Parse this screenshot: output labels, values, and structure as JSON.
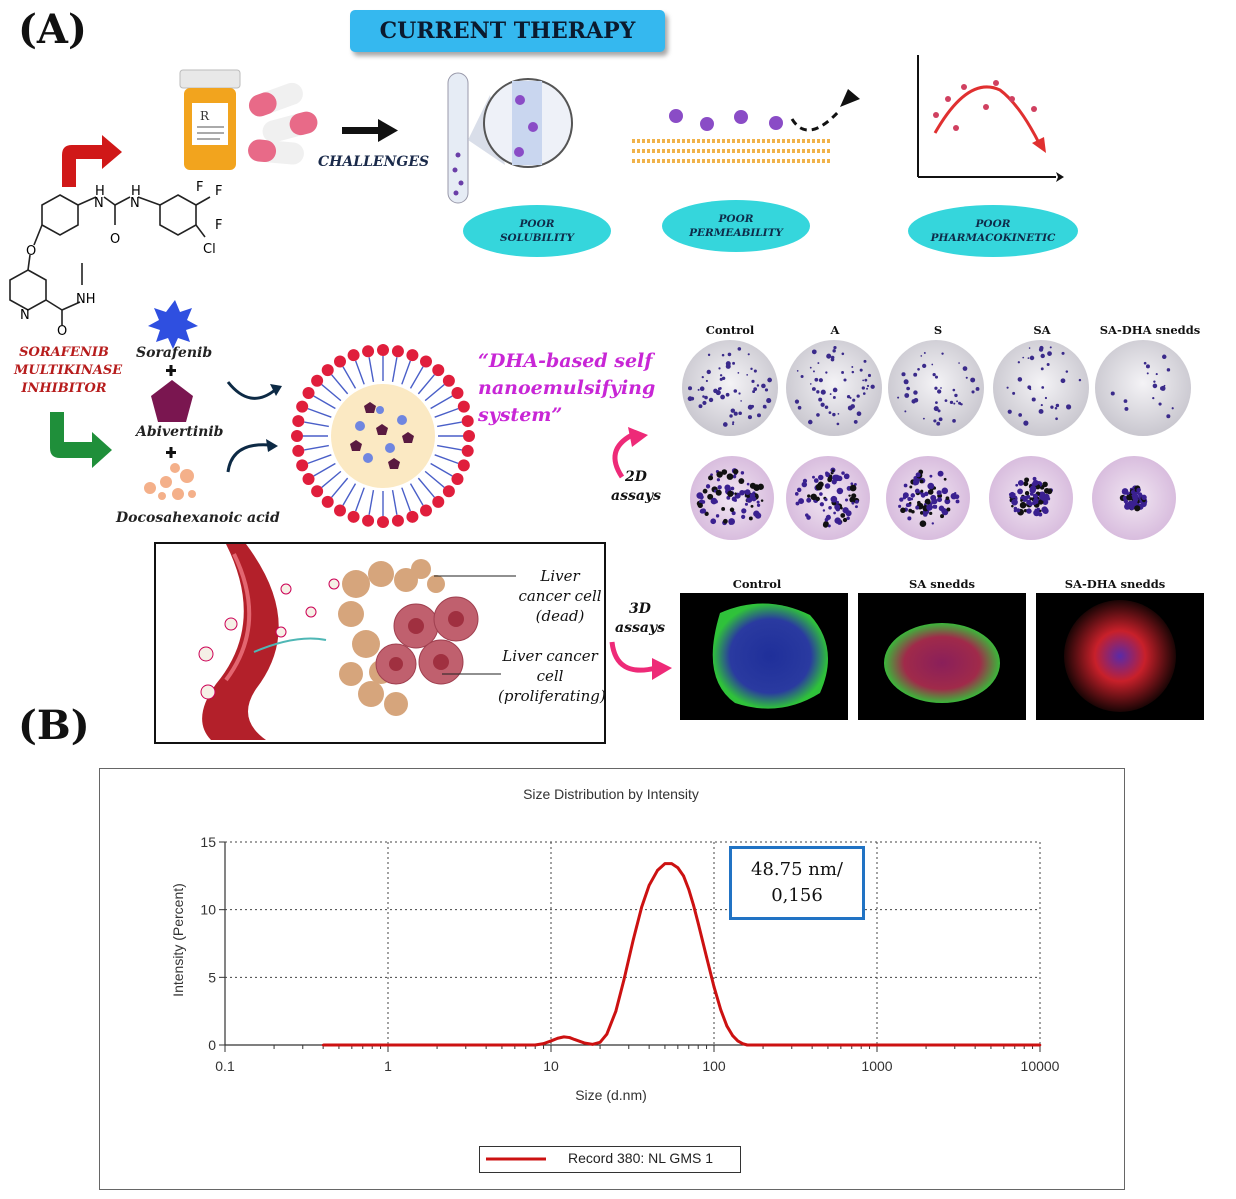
{
  "panel_a_label": "(A)",
  "panel_b_label": "(B)",
  "banner": "CURRENT THERAPY",
  "challenges_label": "CHALLENGES",
  "challenge_pills": [
    {
      "line1": "POOR",
      "line2": "SOLUBILITY"
    },
    {
      "line1": "POOR",
      "line2": "PERMEABILITY"
    },
    {
      "line1": "POOR",
      "line2": "PHARMACOKINETIC"
    }
  ],
  "molecule_atoms": {
    "h1": "H",
    "n1": "N",
    "h2": "H",
    "n2": "N",
    "o": "O",
    "f1": "F",
    "f2": "F",
    "f3": "F",
    "cl": "Cl",
    "o2": "O",
    "n3": "N",
    "o3": "O",
    "nh": "NH"
  },
  "sorafenib_caption": [
    "SORAFENIB",
    "MULTIKINASE",
    "INHIBITOR"
  ],
  "components": {
    "sorafenib": "Sorafenib",
    "plus": "+",
    "abivertinib": "Abivertinib",
    "dha": "Docosahexanoic acid"
  },
  "dha_system": [
    "“DHA-based self",
    "nanoemulsifying",
    "system”"
  ],
  "assay_2d": [
    "2D",
    "assays"
  ],
  "assay_3d": [
    "3D",
    "assays"
  ],
  "columns_2d": [
    "Control",
    "A",
    "S",
    "SA",
    "SA-DHA snedds"
  ],
  "columns_3d": [
    "Control",
    "SA snedds",
    "SA-DHA snedds"
  ],
  "inset": {
    "dead": [
      "Liver",
      "cancer cell",
      "(dead)"
    ],
    "prolif": [
      "Liver cancer",
      "cell",
      "(proliferating)"
    ]
  },
  "chart_data": {
    "type": "line",
    "title": "Size Distribution by Intensity",
    "xlabel": "Size (d.nm)",
    "ylabel": "Intensity (Percent)",
    "xscale": "log",
    "xlim": [
      0.1,
      10000
    ],
    "ylim": [
      0,
      15
    ],
    "xticks": [
      "0.1",
      "1",
      "10",
      "100",
      "1000",
      "10000"
    ],
    "yticks": [
      "0",
      "5",
      "10",
      "15"
    ],
    "grid": true,
    "legend_placement": "bottom",
    "series": [
      {
        "name": "Record 380: NL GMS 1",
        "color": "#cc1111",
        "x": [
          0.4,
          1,
          5,
          8,
          9,
          10,
          11,
          12,
          13,
          14,
          16,
          18,
          20,
          22,
          25,
          28,
          32,
          36,
          40,
          45,
          50,
          55,
          60,
          65,
          70,
          75,
          80,
          90,
          100,
          110,
          120,
          130,
          140,
          150,
          160,
          200,
          1000,
          10000
        ],
        "y": [
          0,
          0,
          0,
          0,
          0.1,
          0.3,
          0.5,
          0.6,
          0.55,
          0.4,
          0.15,
          0.05,
          0.2,
          0.8,
          2.5,
          4.8,
          7.8,
          10.2,
          11.8,
          12.9,
          13.4,
          13.4,
          13.1,
          12.5,
          11.5,
          10.3,
          9.0,
          6.5,
          4.3,
          2.6,
          1.4,
          0.7,
          0.3,
          0.1,
          0,
          0,
          0,
          0
        ]
      }
    ],
    "annotation": [
      "48.75 nm/",
      "0,156"
    ]
  }
}
